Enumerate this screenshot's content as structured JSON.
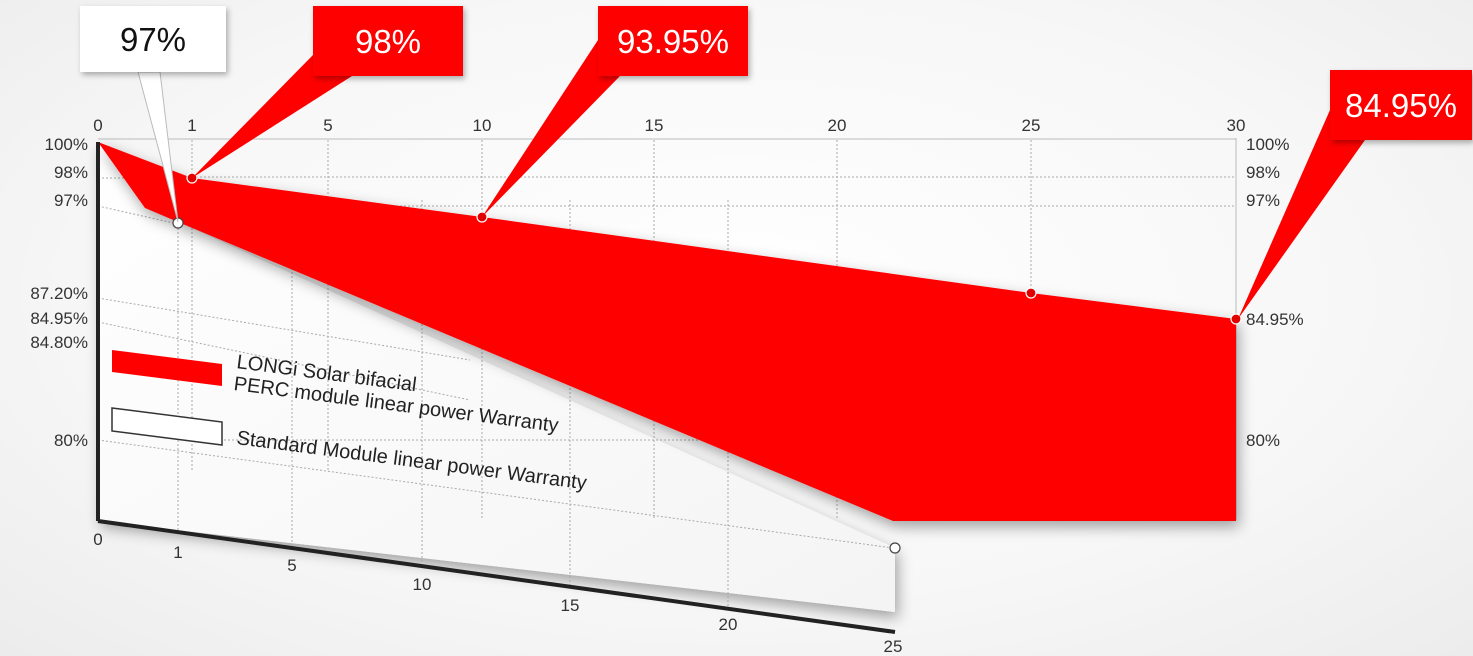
{
  "colors": {
    "bifacial": "#ff0000",
    "standard": "#ffffff",
    "callout_red": "#ff0000",
    "callout_white": "#ffffff",
    "grid": "#aaaaaa",
    "axis": "#222222"
  },
  "chart_data": {
    "type": "area",
    "title": "",
    "x_top_ticks": [
      "0",
      "1",
      "5",
      "10",
      "15",
      "20",
      "25",
      "30"
    ],
    "x_bottom_ticks": [
      "0",
      "1",
      "5",
      "10",
      "15",
      "20",
      "25"
    ],
    "y_left_ticks": [
      "100%",
      "98%",
      "97%",
      "87.20%",
      "84.95%",
      "84.80%",
      "80%"
    ],
    "y_right_ticks": [
      "100%",
      "98%",
      "97%",
      "84.95%",
      "80%"
    ],
    "xlim_top": [
      0,
      30
    ],
    "xlim_bottom": [
      0,
      25
    ],
    "series": [
      {
        "name": "LONGi Solar bifacial PERC module linear power Warranty",
        "name_lines": [
          "LONGi Solar bifacial",
          "PERC module linear power Warranty"
        ],
        "x": [
          0,
          1,
          10,
          25,
          30
        ],
        "y": [
          100,
          98,
          93.95,
          87.2,
          84.95
        ]
      },
      {
        "name": "Standard Module linear power Warranty",
        "name_lines": [
          "Standard Module linear power Warranty"
        ],
        "x": [
          0,
          1,
          25
        ],
        "y": [
          100,
          97,
          80
        ]
      }
    ],
    "callouts": [
      {
        "label": "97%",
        "series": 1,
        "x": 1
      },
      {
        "label": "98%",
        "series": 0,
        "x": 1
      },
      {
        "label": "93.95%",
        "series": 0,
        "x": 10
      },
      {
        "label": "84.95%",
        "series": 0,
        "x": 30
      }
    ]
  }
}
